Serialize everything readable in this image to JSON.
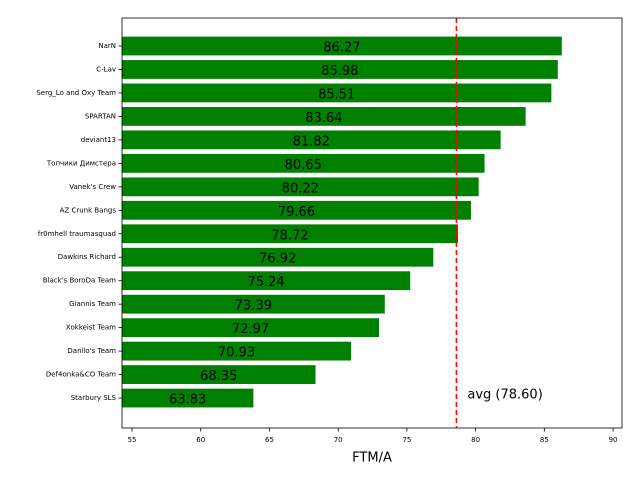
{
  "chart_data": {
    "type": "hbar",
    "xlabel": "FTM/A",
    "categories": [
      "NarN",
      "C-Lav",
      "Serg_Lo and Oxy Team",
      "SPARTAN",
      "deviant13",
      "Топчики Димстера",
      "Vanek's Crew",
      "AZ Crunk Bangs",
      "fr0mhell traumasquad",
      "Dawkins Richard",
      "Black's BoroDa Team",
      "Giannis Team",
      "Xokkeist Team",
      "Danilo's Team",
      "Def4onka&CO Team",
      "Starbury SLS"
    ],
    "values": [
      86.27,
      85.98,
      85.51,
      83.64,
      81.82,
      80.65,
      80.22,
      79.66,
      78.72,
      76.92,
      75.24,
      73.39,
      72.97,
      70.93,
      68.35,
      63.83
    ],
    "color": "#008000",
    "xlim": [
      54.27,
      90.65
    ],
    "xticks": [
      55,
      60,
      65,
      70,
      75,
      80,
      85,
      90
    ],
    "avg_line": 78.6,
    "avg_label": "avg (78.60)",
    "avg_color": "#ff0000"
  }
}
